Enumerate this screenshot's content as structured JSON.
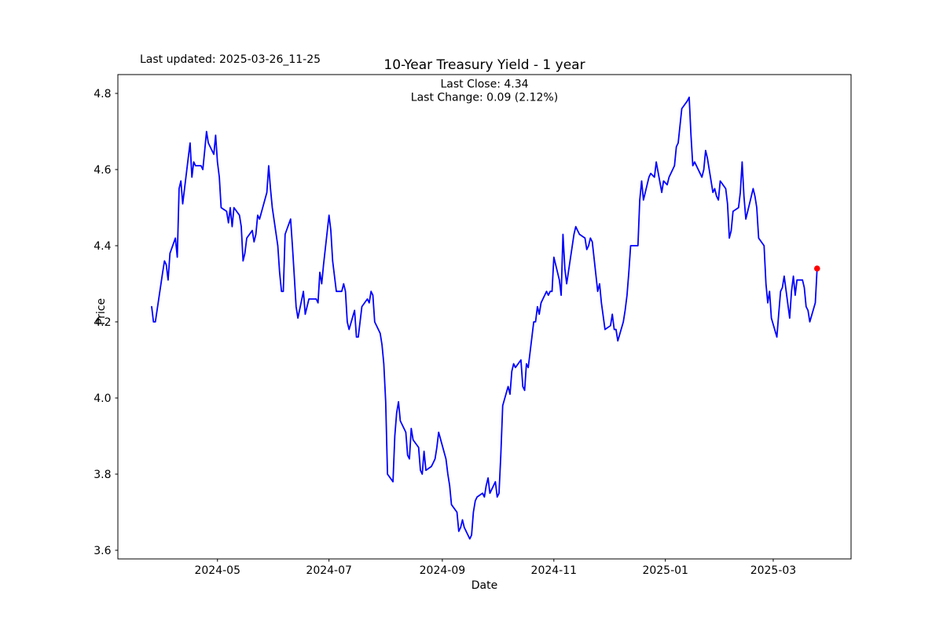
{
  "chart": {
    "title": "10-Year Treasury Yield - 1 year",
    "xlabel": "Date",
    "ylabel": "Price",
    "annotations": {
      "last_updated": "Last updated: 2025-03-26_11-25",
      "last_close": "Last Close: 4.34",
      "last_change": "Last Change: 0.09 (2.12%)"
    },
    "colors": {
      "line": "#0000ff",
      "marker": "#ff0000",
      "text": "#000000",
      "axis": "#000000",
      "background": "#ffffff"
    }
  },
  "chart_data": {
    "type": "line",
    "title": "10-Year Treasury Yield - 1 year",
    "xlabel": "Date",
    "ylabel": "Price",
    "grid": false,
    "legend": false,
    "ylim": [
      3.57,
      4.84
    ],
    "y_ticks": [
      3.6,
      3.8,
      4.0,
      4.2,
      4.4,
      4.6,
      4.8
    ],
    "x_ticks": [
      {
        "label": "2024-05",
        "date": "2024-05-01"
      },
      {
        "label": "2024-07",
        "date": "2024-07-01"
      },
      {
        "label": "2024-09",
        "date": "2024-09-01"
      },
      {
        "label": "2024-11",
        "date": "2024-11-01"
      },
      {
        "label": "2025-01",
        "date": "2025-01-01"
      },
      {
        "label": "2025-03",
        "date": "2025-03-01"
      }
    ],
    "last_close": 4.34,
    "last_change": 0.09,
    "last_change_pct": 2.12,
    "series": [
      {
        "name": "10-Year Treasury Yield",
        "color": "#0000ff",
        "points": [
          [
            "2024-03-26",
            4.24
          ],
          [
            "2024-03-27",
            4.2
          ],
          [
            "2024-03-28",
            4.2
          ],
          [
            "2024-04-01",
            4.33
          ],
          [
            "2024-04-02",
            4.36
          ],
          [
            "2024-04-03",
            4.35
          ],
          [
            "2024-04-04",
            4.31
          ],
          [
            "2024-04-05",
            4.38
          ],
          [
            "2024-04-08",
            4.42
          ],
          [
            "2024-04-09",
            4.37
          ],
          [
            "2024-04-10",
            4.55
          ],
          [
            "2024-04-11",
            4.57
          ],
          [
            "2024-04-12",
            4.51
          ],
          [
            "2024-04-15",
            4.63
          ],
          [
            "2024-04-16",
            4.67
          ],
          [
            "2024-04-17",
            4.58
          ],
          [
            "2024-04-18",
            4.62
          ],
          [
            "2024-04-19",
            4.61
          ],
          [
            "2024-04-22",
            4.61
          ],
          [
            "2024-04-23",
            4.6
          ],
          [
            "2024-04-24",
            4.65
          ],
          [
            "2024-04-25",
            4.7
          ],
          [
            "2024-04-26",
            4.67
          ],
          [
            "2024-04-29",
            4.64
          ],
          [
            "2024-04-30",
            4.69
          ],
          [
            "2024-05-01",
            4.62
          ],
          [
            "2024-05-02",
            4.58
          ],
          [
            "2024-05-03",
            4.5
          ],
          [
            "2024-05-06",
            4.49
          ],
          [
            "2024-05-07",
            4.46
          ],
          [
            "2024-05-08",
            4.5
          ],
          [
            "2024-05-09",
            4.45
          ],
          [
            "2024-05-10",
            4.5
          ],
          [
            "2024-05-13",
            4.48
          ],
          [
            "2024-05-14",
            4.45
          ],
          [
            "2024-05-15",
            4.36
          ],
          [
            "2024-05-16",
            4.38
          ],
          [
            "2024-05-17",
            4.42
          ],
          [
            "2024-05-20",
            4.44
          ],
          [
            "2024-05-21",
            4.41
          ],
          [
            "2024-05-22",
            4.43
          ],
          [
            "2024-05-23",
            4.48
          ],
          [
            "2024-05-24",
            4.47
          ],
          [
            "2024-05-28",
            4.54
          ],
          [
            "2024-05-29",
            4.61
          ],
          [
            "2024-05-30",
            4.55
          ],
          [
            "2024-05-31",
            4.5
          ],
          [
            "2024-06-03",
            4.4
          ],
          [
            "2024-06-04",
            4.33
          ],
          [
            "2024-06-05",
            4.28
          ],
          [
            "2024-06-06",
            4.28
          ],
          [
            "2024-06-07",
            4.43
          ],
          [
            "2024-06-10",
            4.47
          ],
          [
            "2024-06-11",
            4.4
          ],
          [
            "2024-06-12",
            4.32
          ],
          [
            "2024-06-13",
            4.24
          ],
          [
            "2024-06-14",
            4.21
          ],
          [
            "2024-06-17",
            4.28
          ],
          [
            "2024-06-18",
            4.22
          ],
          [
            "2024-06-20",
            4.26
          ],
          [
            "2024-06-21",
            4.26
          ],
          [
            "2024-06-24",
            4.26
          ],
          [
            "2024-06-25",
            4.25
          ],
          [
            "2024-06-26",
            4.33
          ],
          [
            "2024-06-27",
            4.3
          ],
          [
            "2024-06-28",
            4.35
          ],
          [
            "2024-07-01",
            4.48
          ],
          [
            "2024-07-02",
            4.44
          ],
          [
            "2024-07-03",
            4.36
          ],
          [
            "2024-07-05",
            4.28
          ],
          [
            "2024-07-08",
            4.28
          ],
          [
            "2024-07-09",
            4.3
          ],
          [
            "2024-07-10",
            4.28
          ],
          [
            "2024-07-11",
            4.2
          ],
          [
            "2024-07-12",
            4.18
          ],
          [
            "2024-07-15",
            4.23
          ],
          [
            "2024-07-16",
            4.16
          ],
          [
            "2024-07-17",
            4.16
          ],
          [
            "2024-07-18",
            4.2
          ],
          [
            "2024-07-19",
            4.24
          ],
          [
            "2024-07-22",
            4.26
          ],
          [
            "2024-07-23",
            4.25
          ],
          [
            "2024-07-24",
            4.28
          ],
          [
            "2024-07-25",
            4.27
          ],
          [
            "2024-07-26",
            4.2
          ],
          [
            "2024-07-29",
            4.17
          ],
          [
            "2024-07-30",
            4.14
          ],
          [
            "2024-07-31",
            4.09
          ],
          [
            "2024-08-01",
            3.99
          ],
          [
            "2024-08-02",
            3.8
          ],
          [
            "2024-08-05",
            3.78
          ],
          [
            "2024-08-06",
            3.9
          ],
          [
            "2024-08-07",
            3.96
          ],
          [
            "2024-08-08",
            3.99
          ],
          [
            "2024-08-09",
            3.94
          ],
          [
            "2024-08-12",
            3.91
          ],
          [
            "2024-08-13",
            3.85
          ],
          [
            "2024-08-14",
            3.84
          ],
          [
            "2024-08-15",
            3.92
          ],
          [
            "2024-08-16",
            3.89
          ],
          [
            "2024-08-19",
            3.87
          ],
          [
            "2024-08-20",
            3.81
          ],
          [
            "2024-08-21",
            3.8
          ],
          [
            "2024-08-22",
            3.86
          ],
          [
            "2024-08-23",
            3.81
          ],
          [
            "2024-08-26",
            3.82
          ],
          [
            "2024-08-27",
            3.83
          ],
          [
            "2024-08-28",
            3.84
          ],
          [
            "2024-08-29",
            3.87
          ],
          [
            "2024-08-30",
            3.91
          ],
          [
            "2024-09-03",
            3.84
          ],
          [
            "2024-09-04",
            3.8
          ],
          [
            "2024-09-05",
            3.77
          ],
          [
            "2024-09-06",
            3.72
          ],
          [
            "2024-09-09",
            3.7
          ],
          [
            "2024-09-10",
            3.65
          ],
          [
            "2024-09-11",
            3.66
          ],
          [
            "2024-09-12",
            3.68
          ],
          [
            "2024-09-13",
            3.66
          ],
          [
            "2024-09-16",
            3.63
          ],
          [
            "2024-09-17",
            3.64
          ],
          [
            "2024-09-18",
            3.7
          ],
          [
            "2024-09-19",
            3.73
          ],
          [
            "2024-09-20",
            3.74
          ],
          [
            "2024-09-23",
            3.75
          ],
          [
            "2024-09-24",
            3.74
          ],
          [
            "2024-09-25",
            3.77
          ],
          [
            "2024-09-26",
            3.79
          ],
          [
            "2024-09-27",
            3.75
          ],
          [
            "2024-09-30",
            3.78
          ],
          [
            "2024-10-01",
            3.74
          ],
          [
            "2024-10-02",
            3.75
          ],
          [
            "2024-10-03",
            3.85
          ],
          [
            "2024-10-04",
            3.98
          ],
          [
            "2024-10-07",
            4.03
          ],
          [
            "2024-10-08",
            4.01
          ],
          [
            "2024-10-09",
            4.07
          ],
          [
            "2024-10-10",
            4.09
          ],
          [
            "2024-10-11",
            4.08
          ],
          [
            "2024-10-14",
            4.1
          ],
          [
            "2024-10-15",
            4.03
          ],
          [
            "2024-10-16",
            4.02
          ],
          [
            "2024-10-17",
            4.09
          ],
          [
            "2024-10-18",
            4.08
          ],
          [
            "2024-10-21",
            4.2
          ],
          [
            "2024-10-22",
            4.2
          ],
          [
            "2024-10-23",
            4.24
          ],
          [
            "2024-10-24",
            4.22
          ],
          [
            "2024-10-25",
            4.25
          ],
          [
            "2024-10-28",
            4.28
          ],
          [
            "2024-10-29",
            4.27
          ],
          [
            "2024-10-30",
            4.28
          ],
          [
            "2024-10-31",
            4.28
          ],
          [
            "2024-11-01",
            4.37
          ],
          [
            "2024-11-04",
            4.31
          ],
          [
            "2024-11-05",
            4.27
          ],
          [
            "2024-11-06",
            4.43
          ],
          [
            "2024-11-07",
            4.34
          ],
          [
            "2024-11-08",
            4.3
          ],
          [
            "2024-11-12",
            4.43
          ],
          [
            "2024-11-13",
            4.45
          ],
          [
            "2024-11-14",
            4.44
          ],
          [
            "2024-11-15",
            4.43
          ],
          [
            "2024-11-18",
            4.42
          ],
          [
            "2024-11-19",
            4.39
          ],
          [
            "2024-11-20",
            4.4
          ],
          [
            "2024-11-21",
            4.42
          ],
          [
            "2024-11-22",
            4.41
          ],
          [
            "2024-11-25",
            4.28
          ],
          [
            "2024-11-26",
            4.3
          ],
          [
            "2024-11-27",
            4.25
          ],
          [
            "2024-11-29",
            4.18
          ],
          [
            "2024-12-02",
            4.19
          ],
          [
            "2024-12-03",
            4.22
          ],
          [
            "2024-12-04",
            4.18
          ],
          [
            "2024-12-05",
            4.18
          ],
          [
            "2024-12-06",
            4.15
          ],
          [
            "2024-12-09",
            4.2
          ],
          [
            "2024-12-10",
            4.23
          ],
          [
            "2024-12-11",
            4.27
          ],
          [
            "2024-12-12",
            4.33
          ],
          [
            "2024-12-13",
            4.4
          ],
          [
            "2024-12-16",
            4.4
          ],
          [
            "2024-12-17",
            4.4
          ],
          [
            "2024-12-18",
            4.52
          ],
          [
            "2024-12-19",
            4.57
          ],
          [
            "2024-12-20",
            4.52
          ],
          [
            "2024-12-23",
            4.58
          ],
          [
            "2024-12-24",
            4.59
          ],
          [
            "2024-12-26",
            4.58
          ],
          [
            "2024-12-27",
            4.62
          ],
          [
            "2024-12-30",
            4.54
          ],
          [
            "2024-12-31",
            4.57
          ],
          [
            "2025-01-02",
            4.56
          ],
          [
            "2025-01-03",
            4.58
          ],
          [
            "2025-01-06",
            4.61
          ],
          [
            "2025-01-07",
            4.66
          ],
          [
            "2025-01-08",
            4.67
          ],
          [
            "2025-01-10",
            4.76
          ],
          [
            "2025-01-13",
            4.78
          ],
          [
            "2025-01-14",
            4.79
          ],
          [
            "2025-01-15",
            4.69
          ],
          [
            "2025-01-16",
            4.61
          ],
          [
            "2025-01-17",
            4.62
          ],
          [
            "2025-01-21",
            4.58
          ],
          [
            "2025-01-22",
            4.6
          ],
          [
            "2025-01-23",
            4.65
          ],
          [
            "2025-01-24",
            4.63
          ],
          [
            "2025-01-27",
            4.54
          ],
          [
            "2025-01-28",
            4.55
          ],
          [
            "2025-01-29",
            4.53
          ],
          [
            "2025-01-30",
            4.52
          ],
          [
            "2025-01-31",
            4.57
          ],
          [
            "2025-02-03",
            4.55
          ],
          [
            "2025-02-04",
            4.51
          ],
          [
            "2025-02-05",
            4.42
          ],
          [
            "2025-02-06",
            4.44
          ],
          [
            "2025-02-07",
            4.49
          ],
          [
            "2025-02-10",
            4.5
          ],
          [
            "2025-02-11",
            4.54
          ],
          [
            "2025-02-12",
            4.62
          ],
          [
            "2025-02-13",
            4.53
          ],
          [
            "2025-02-14",
            4.47
          ],
          [
            "2025-02-18",
            4.55
          ],
          [
            "2025-02-19",
            4.53
          ],
          [
            "2025-02-20",
            4.5
          ],
          [
            "2025-02-21",
            4.42
          ],
          [
            "2025-02-24",
            4.4
          ],
          [
            "2025-02-25",
            4.3
          ],
          [
            "2025-02-26",
            4.25
          ],
          [
            "2025-02-27",
            4.28
          ],
          [
            "2025-02-28",
            4.21
          ],
          [
            "2025-03-03",
            4.16
          ],
          [
            "2025-03-04",
            4.22
          ],
          [
            "2025-03-05",
            4.28
          ],
          [
            "2025-03-06",
            4.29
          ],
          [
            "2025-03-07",
            4.32
          ],
          [
            "2025-03-10",
            4.21
          ],
          [
            "2025-03-11",
            4.28
          ],
          [
            "2025-03-12",
            4.32
          ],
          [
            "2025-03-13",
            4.27
          ],
          [
            "2025-03-14",
            4.31
          ],
          [
            "2025-03-17",
            4.31
          ],
          [
            "2025-03-18",
            4.29
          ],
          [
            "2025-03-19",
            4.24
          ],
          [
            "2025-03-20",
            4.23
          ],
          [
            "2025-03-21",
            4.2
          ],
          [
            "2025-03-24",
            4.25
          ],
          [
            "2025-03-25",
            4.34
          ]
        ]
      }
    ],
    "last_point_marker": {
      "date": "2025-03-25",
      "value": 4.34,
      "color": "#ff0000"
    }
  }
}
